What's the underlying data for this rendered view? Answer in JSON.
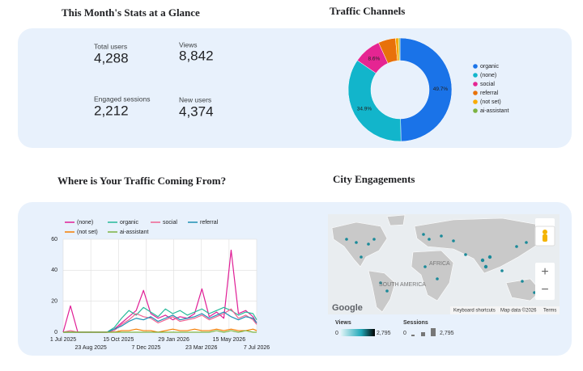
{
  "stats": {
    "title": "This Month's Stats at a Glance",
    "items": [
      {
        "label": "Total users",
        "value": "4,288"
      },
      {
        "label": "Views",
        "value": "8,842"
      },
      {
        "label": "Engaged sessions",
        "value": "2,212"
      },
      {
        "label": "New users",
        "value": "4,374"
      }
    ]
  },
  "map": {
    "title": "City Engagements",
    "labels": [
      "AFRICA",
      "SOUTH AMERICA"
    ],
    "attribution": [
      "Keyboard shortcuts",
      "Map data ©2026",
      "Terms"
    ],
    "logo": "Google",
    "views_legend": {
      "label": "Views",
      "min": "0",
      "max": "2,795"
    },
    "sessions_legend": {
      "label": "Sessions",
      "min": "0",
      "max": "2,795"
    }
  },
  "chart_data": [
    {
      "type": "donut",
      "title": "Traffic Channels",
      "categories": [
        "organic",
        "(none)",
        "social",
        "referral",
        "(not set)",
        "ai-assistant"
      ],
      "values": [
        49.7,
        34.9,
        8.6,
        5.4,
        1.0,
        0.4
      ],
      "value_labels": [
        "49.7%",
        "34.9%",
        "8.6%",
        null,
        null,
        null
      ],
      "colors": [
        "#1a73e8",
        "#12b5cb",
        "#e52592",
        "#e8710a",
        "#f9ab00",
        "#7cb342"
      ]
    },
    {
      "type": "line",
      "title": "Where is Your Traffic Coming From?",
      "x": [
        "2025-07-01",
        "2025-07-15",
        "2025-07-29",
        "2025-08-12",
        "2025-08-26",
        "2025-09-09",
        "2025-09-23",
        "2025-10-07",
        "2025-10-21",
        "2025-11-04",
        "2025-11-18",
        "2025-12-02",
        "2025-12-16",
        "2025-12-30",
        "2026-01-13",
        "2026-01-27",
        "2026-02-10",
        "2026-02-24",
        "2026-03-10",
        "2026-03-24",
        "2026-04-07",
        "2026-04-21",
        "2026-05-05",
        "2026-05-19",
        "2026-06-02",
        "2026-06-16",
        "2026-06-30",
        "2026-07-07"
      ],
      "xlim": [
        "2025-07-01",
        "2026-07-07"
      ],
      "xticks": [
        {
          "value": "2025-07-01",
          "label": "1 Jul 2025"
        },
        {
          "value": "2025-08-23",
          "label": "23 Aug 2025"
        },
        {
          "value": "2025-10-15",
          "label": "15 Oct 2025"
        },
        {
          "value": "2025-12-07",
          "label": "7 Dec 2025"
        },
        {
          "value": "2026-01-29",
          "label": "29 Jan 2026"
        },
        {
          "value": "2026-03-23",
          "label": "23 Mar 2026"
        },
        {
          "value": "2026-05-15",
          "label": "15 May 2026"
        },
        {
          "value": "2026-07-07",
          "label": "7 Jul 2026"
        }
      ],
      "ylim": [
        0,
        60
      ],
      "yticks": [
        0,
        20,
        40,
        60
      ],
      "grid": true,
      "series": [
        {
          "name": "(none)",
          "color": "#e01e96",
          "values": [
            0,
            17,
            0,
            0,
            0,
            0,
            0,
            2,
            6,
            10,
            14,
            27,
            12,
            9,
            11,
            8,
            10,
            9,
            12,
            28,
            10,
            13,
            9,
            53,
            12,
            14,
            10,
            6
          ]
        },
        {
          "name": "organic",
          "color": "#26b99a",
          "values": [
            0,
            0,
            0,
            0,
            0,
            0,
            0,
            3,
            9,
            14,
            11,
            16,
            13,
            10,
            15,
            12,
            14,
            11,
            13,
            15,
            12,
            14,
            16,
            14,
            11,
            13,
            12,
            8
          ]
        },
        {
          "name": "social",
          "color": "#f06292",
          "values": [
            0,
            1,
            0,
            0,
            0,
            0,
            0,
            1,
            5,
            8,
            12,
            10,
            9,
            6,
            8,
            10,
            7,
            8,
            9,
            11,
            8,
            10,
            12,
            15,
            9,
            11,
            8,
            5
          ]
        },
        {
          "name": "referral",
          "color": "#1f8fb4",
          "values": [
            0,
            0,
            0,
            0,
            0,
            0,
            0,
            2,
            4,
            7,
            9,
            8,
            10,
            7,
            9,
            11,
            8,
            9,
            10,
            12,
            9,
            11,
            13,
            10,
            8,
            10,
            9,
            6
          ]
        },
        {
          "name": "(not set)",
          "color": "#f57c00",
          "values": [
            0,
            0,
            0,
            0,
            0,
            0,
            0,
            0,
            1,
            1,
            2,
            1,
            1,
            0,
            1,
            2,
            1,
            1,
            2,
            1,
            1,
            2,
            1,
            2,
            1,
            1,
            2,
            1
          ]
        },
        {
          "name": "ai-assistant",
          "color": "#7cb342",
          "values": [
            0,
            0,
            0,
            0,
            0,
            0,
            0,
            0,
            0,
            0,
            0,
            0,
            0,
            0,
            0,
            0,
            0,
            0,
            0,
            0,
            0,
            1,
            0,
            1,
            0,
            1,
            0,
            0
          ]
        }
      ]
    }
  ]
}
